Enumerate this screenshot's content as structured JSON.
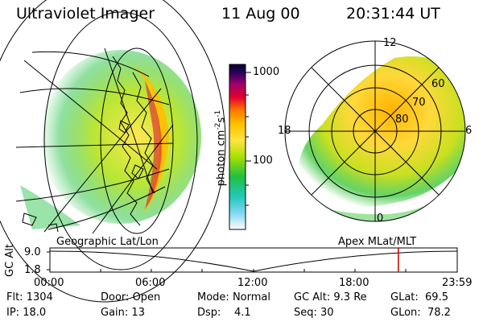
{
  "header": {
    "title": "Ultraviolet Imager",
    "date": "11 Aug 00",
    "time": "20:31:44 UT"
  },
  "colorbar": {
    "label": "photon cm",
    "label_sup1": "-2",
    "label_mid": "s",
    "label_sup2": "-1",
    "ticks": [
      "1000",
      "100"
    ],
    "colors": [
      "#000030",
      "#3a0060",
      "#a0006a",
      "#e4002e",
      "#ff7a00",
      "#ffbf00",
      "#ffe640",
      "#a8e000",
      "#20c040",
      "#20c8b8",
      "#80d8f0",
      "#ffffff"
    ]
  },
  "left_panel": {
    "caption": "Geographic Lat/Lon"
  },
  "right_panel": {
    "caption": "Apex MLat/MLT",
    "mlt_labels": {
      "top": "12",
      "left": "18",
      "right": "6",
      "bottom": "0"
    },
    "lat_labels": [
      "60",
      "70",
      "80"
    ]
  },
  "altitude_plot": {
    "ylabel": "GC Alt",
    "yticks": [
      "9.0",
      "1.8"
    ],
    "xticks": [
      "00:00",
      "06:00",
      "12:00",
      "18:00",
      "23:59"
    ],
    "marker_color": "#cc0000",
    "marker_time_hours": 20.53
  },
  "info": {
    "flt_label": "Flt:",
    "flt_value": "1304",
    "door_label": "Door:",
    "door_value": "Open",
    "mode_label": "Mode:",
    "mode_value": "Normal",
    "gcalt_label": "GC Alt:",
    "gcalt_value": "9.3 Re",
    "glat_label": "GLat:",
    "glat_value": "69.5",
    "ip_label": "IP:",
    "ip_value": "18.0",
    "gain_label": "Gain:",
    "gain_value": "13",
    "dsp_label": "Dsp:",
    "dsp_value": "4.1",
    "seq_label": "Seq:",
    "seq_value": "30",
    "glon_label": "GLon:",
    "glon_value": "78.2"
  }
}
